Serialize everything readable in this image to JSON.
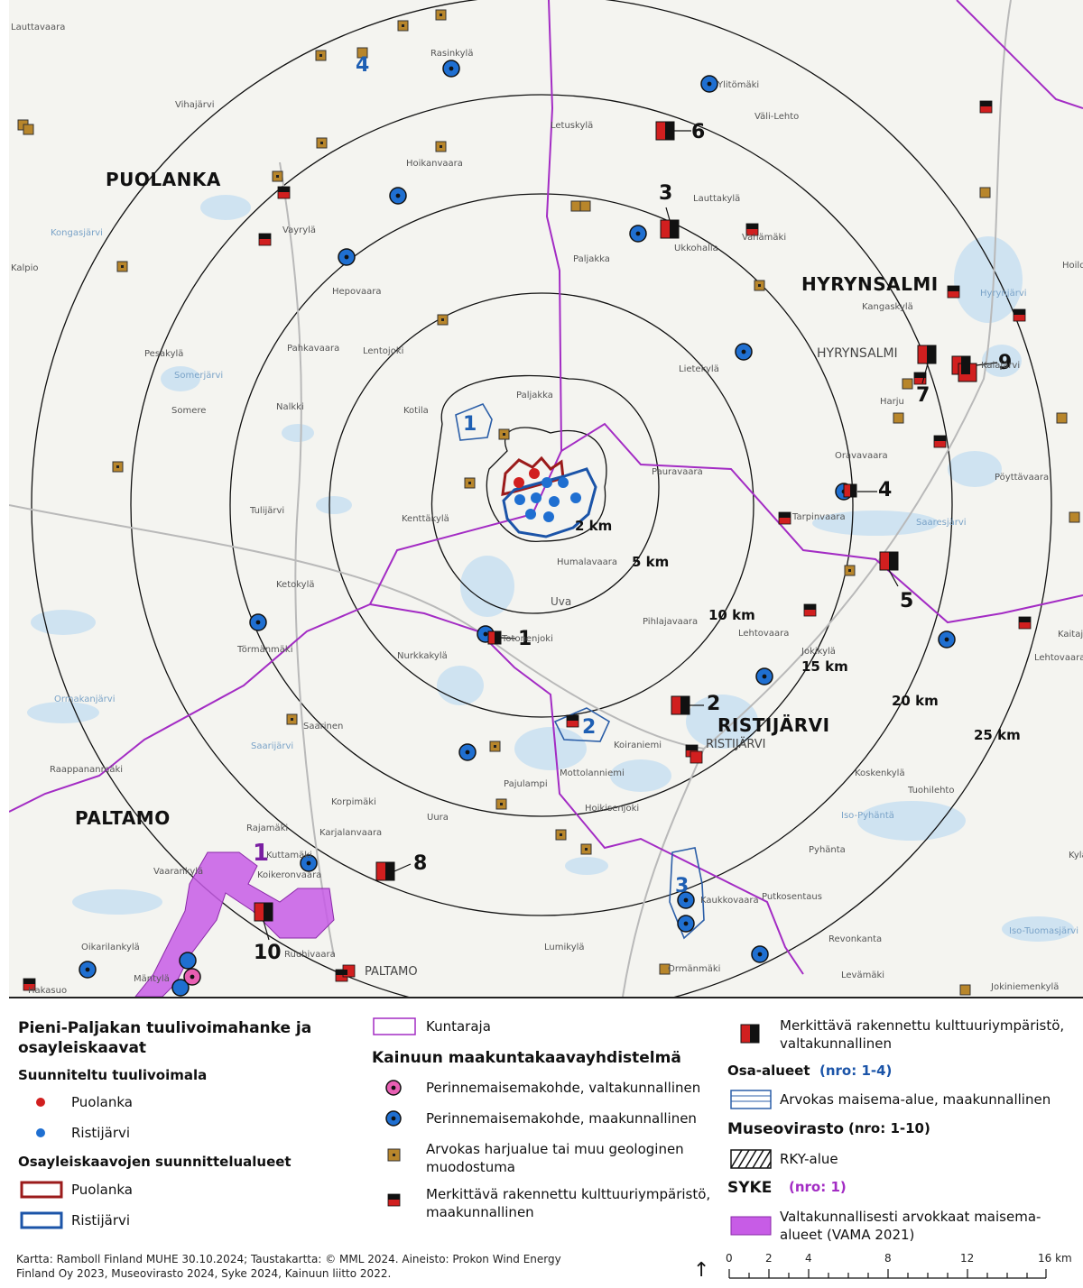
{
  "map": {
    "municipalities": [
      "PUOLANKA",
      "HYRYNSALMI",
      "RISTIJÄRVI",
      "PALTAMO"
    ],
    "distance_labels": [
      "2 km",
      "5 km",
      "10 km",
      "15 km",
      "20 km",
      "25 km"
    ],
    "places": [
      "Rasinkylä",
      "Vihajärvi",
      "Ylitömäki",
      "Väli-Lehto",
      "Letuskylä",
      "Hoikanvaara",
      "Lauttakylä",
      "Vayrylä",
      "Ukkohalla",
      "Vahämäki",
      "Paljakka",
      "Kalpio",
      "Hepovaara",
      "Kangaskylä",
      "Pahkavaara",
      "Lentojoki",
      "Pesakylä",
      "Lietekylä",
      "Somerjärvi",
      "HYRYNSALMI",
      "Kalajärvi",
      "Paljakka",
      "Harju",
      "Somere",
      "Nalkki",
      "Kotila",
      "Oravavaara",
      "Pöyttävaara",
      "Pauravaara",
      "Kenttäkylä",
      "Tulijärvi",
      "Tarpinvaara",
      "Humalavaara",
      "Uva",
      "Ketokylä",
      "Pihlajavaara",
      "Lehtovaara",
      "Lehtovaara",
      "Törmänmäki",
      "Totonenjoki",
      "Nurkkakylä",
      "Jokikylä",
      "Saarinen",
      "Koiraniemi",
      "RISTIJÄRVI",
      "Raappananmäki",
      "Mottolanniemi",
      "Pajulampi",
      "Koskenkylä",
      "Tuohilehto",
      "Korpimäki",
      "Hoikisenjoki",
      "Iso-Pyhäntä",
      "Rajamäki",
      "Karjalanvaara",
      "Uura",
      "Pyhänta",
      "Kylä",
      "Kuttamäki",
      "Vaarankylä",
      "Koikeronvaara",
      "Kaukkovaara",
      "Putkosentaus",
      "Iso-Tuomasjärvi",
      "Revonkanta",
      "Oikarilankylä",
      "Lumikylä",
      "Ruuhivaara",
      "Mäntylä",
      "PALTAMO",
      "Ormänmäki",
      "Levämäki",
      "Jokiniemenkylä",
      "Hakasuo",
      "Hoild",
      "Hyrynjärvi",
      "Kaitaja",
      "Lauttavaara",
      "Kongasjärvi",
      "Saaresjärvi",
      "Saarijärvi",
      "Ormakanjärvi"
    ],
    "museum_numbers": [
      "1",
      "2",
      "3",
      "4",
      "5",
      "6",
      "7",
      "8",
      "9",
      "10"
    ],
    "area_numbers": [
      "1",
      "2",
      "3",
      "4"
    ],
    "syke_number": "1"
  },
  "legend": {
    "title": "Pieni-Paljakan tuulivoimahanke ja osayleiskaavat",
    "planned_title": "Suunniteltu tuulivoimala",
    "planned_items": [
      "Puolanka",
      "Ristijärvi"
    ],
    "plan_areas_title": "Osayleiskaavojen suunnittelualueet",
    "plan_areas_items": [
      "Puolanka",
      "Ristijärvi"
    ],
    "kuntaraja": "Kuntaraja",
    "kainuu_title": "Kainuun maakuntakaavayhdistelmä",
    "kainuu_items": [
      "Perinnemaisemakohde, valtakunnallinen",
      "Perinnemaisemakohde, maakunnallinen",
      "Arvokas harjualue tai muu geologinen muodostuma",
      "Merkittävä rakennettu kulttuuriympäristö, maakunnallinen",
      "Merkittävä rakennettu kulttuuriympäristö, valtakunnallinen"
    ],
    "osa_title": "Osa-alueet",
    "osa_nro": "(nro: 1-4)",
    "osa_item": "Arvokas maisema-alue, maakunnallinen",
    "museo_title": "Museovirasto",
    "museo_nro": "(nro: 1-10)",
    "museo_item": "RKY-alue",
    "syke_title": "SYKE",
    "syke_nro": "(nro: 1)",
    "syke_item": "Valtakunnallisesti arvokkaat maisema-alueet (VAMA 2021)",
    "credits": "Kartta: Ramboll Finland MUHE 30.10.2024; Taustakartta: © MML 2024. Aineisto: Prokon Wind Energy Finland Oy 2023, Museovirasto 2024, Syke 2024, Kainuun liitto 2022.",
    "scale_ticks": [
      "0",
      "2",
      "4",
      "8",
      "12",
      "16 km"
    ]
  },
  "colors": {
    "puolanka_red": "#d11f1f",
    "ristijarvi_blue": "#1f6fd1",
    "boundary_purple": "#a32cc4",
    "syke_fill": "#c75ce6",
    "area_blue": "#2c5fa8",
    "harju_brown": "#b8862b"
  }
}
